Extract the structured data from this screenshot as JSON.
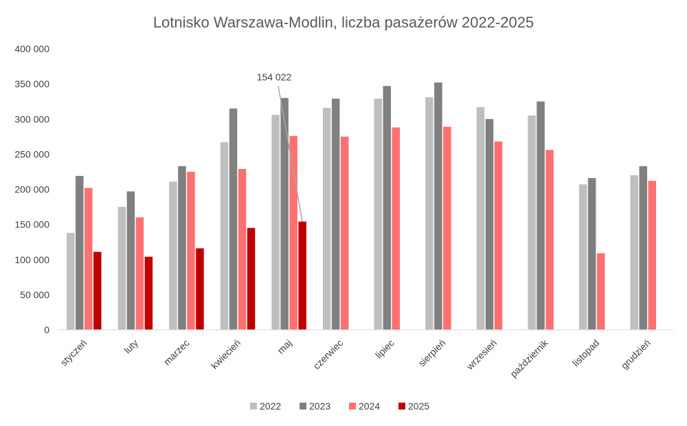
{
  "chart_data": {
    "type": "bar",
    "title": "Lotnisko Warszawa-Modlin, liczba pasażerów 2022-2025",
    "categories": [
      "styczeń",
      "luty",
      "marzec",
      "kwiecień",
      "maj",
      "czerwiec",
      "lipiec",
      "sierpień",
      "wrzesień",
      "październik",
      "listopad",
      "grudzień"
    ],
    "series": [
      {
        "name": "2022",
        "color": "#bfbfbf",
        "values": [
          138000,
          175000,
          211000,
          267000,
          306000,
          316000,
          329000,
          331000,
          317000,
          305000,
          207000,
          220000
        ]
      },
      {
        "name": "2023",
        "color": "#808080",
        "values": [
          219000,
          197000,
          233000,
          315000,
          330000,
          329000,
          347000,
          352000,
          300000,
          325000,
          216000,
          233000
        ]
      },
      {
        "name": "2024",
        "color": "#ff7070",
        "values": [
          202000,
          160000,
          225000,
          229000,
          276000,
          275000,
          288000,
          289000,
          268000,
          256000,
          109000,
          212000
        ]
      },
      {
        "name": "2025",
        "color": "#c00000",
        "values": [
          111000,
          104000,
          116000,
          145000,
          154022,
          null,
          null,
          null,
          null,
          null,
          null,
          null
        ]
      }
    ],
    "yticks": [
      "0",
      "50 000",
      "100 000",
      "150 000",
      "200 000",
      "250 000",
      "300 000",
      "350 000",
      "400 000"
    ],
    "ylim": [
      0,
      400000
    ],
    "xlabel": "",
    "ylabel": "",
    "grid": false,
    "legend_position": "bottom",
    "annotation": {
      "text": "154 022",
      "category": "maj",
      "series": "2025"
    }
  }
}
